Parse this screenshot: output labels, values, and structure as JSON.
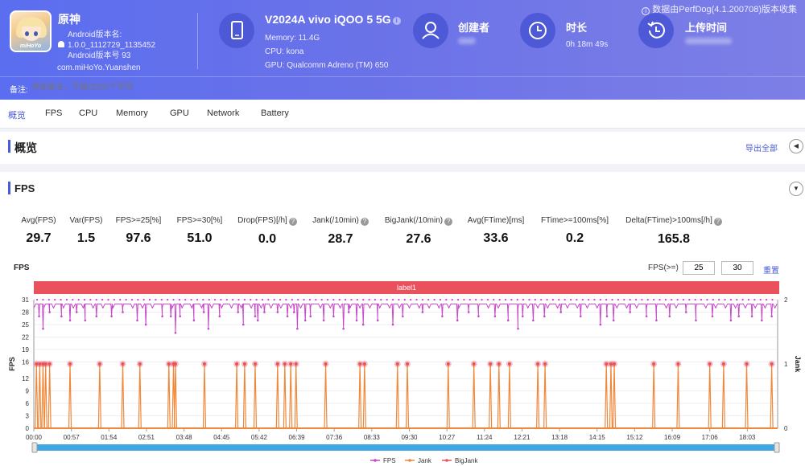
{
  "header": {
    "perfdog_notice": "数据由PerfDog(4.1.200708)版本收集",
    "app": {
      "name": "原神",
      "icon_logo_text": "miHoYo",
      "android_version_label": "Android版本名:",
      "android_version_name": "1.0.0_1112729_1135452",
      "android_version_code": "Android版本号 93",
      "package": "com.miHoYo.Yuanshen"
    },
    "device": {
      "icon": "phone-icon",
      "title": "V2024A vivo iQOO 5 5G",
      "memory": "Memory: 11.4G",
      "cpu": "CPU: kona",
      "gpu": "GPU: Qualcomm Adreno (TM) 650"
    },
    "creator": {
      "icon": "user-icon",
      "label": "创建者"
    },
    "duration": {
      "icon": "clock-icon",
      "label": "时长",
      "value": "0h 18m 49s"
    },
    "upload": {
      "icon": "history-icon",
      "label": "上传时间"
    },
    "note": {
      "label": "备注:",
      "placeholder": "添加备注，不超过200个字符"
    }
  },
  "tabs": [
    {
      "label": "概览",
      "active": true
    },
    {
      "label": "FPS"
    },
    {
      "label": "CPU"
    },
    {
      "label": "Memory"
    },
    {
      "label": "GPU"
    },
    {
      "label": "Network"
    },
    {
      "label": "Battery"
    }
  ],
  "overview": {
    "title": "概览",
    "export_label": "导出全部"
  },
  "fps_section": {
    "title": "FPS",
    "metrics": [
      {
        "label": "Avg(FPS)",
        "value": "29.7"
      },
      {
        "label": "Var(FPS)",
        "value": "1.5"
      },
      {
        "label": "FPS>=25[%]",
        "value": "97.6"
      },
      {
        "label": "FPS>=30[%]",
        "value": "51.0"
      },
      {
        "label": "Drop(FPS)[/h]",
        "value": "0.0",
        "help": true
      },
      {
        "label": "Jank(/10min)",
        "value": "28.7",
        "help": true
      },
      {
        "label": "BigJank(/10min)",
        "value": "27.6",
        "help": true
      },
      {
        "label": "Avg(FTime)[ms]",
        "value": "33.6"
      },
      {
        "label": "FTime>=100ms[%]",
        "value": "0.2"
      },
      {
        "label": "Delta(FTime)>100ms[/h]",
        "value": "165.8",
        "help": true
      }
    ],
    "chart_title": "FPS",
    "threshold_label": "FPS(>=)",
    "threshold_1": "25",
    "threshold_2": "30",
    "reset_label": "重置",
    "label_bar": "label1"
  },
  "chart_data": {
    "type": "line",
    "title": "FPS",
    "ylabel": "FPS",
    "y2label": "Jank",
    "ylim": [
      0,
      31
    ],
    "y2lim": [
      0,
      2
    ],
    "yticks": [
      0,
      3,
      6,
      9,
      12,
      16,
      19,
      22,
      25,
      28,
      31
    ],
    "y2ticks": [
      0,
      1,
      2
    ],
    "xticks": [
      "00:00",
      "00:57",
      "01:54",
      "02:51",
      "03:48",
      "04:45",
      "05:42",
      "06:39",
      "07:36",
      "08:33",
      "09:30",
      "10:27",
      "11:24",
      "12:21",
      "13:18",
      "14:15",
      "15:12",
      "16:09",
      "17:06",
      "18:03"
    ],
    "duration_seconds": 1129,
    "fps_baseline": 30,
    "fps_dips": [
      [
        8,
        27
      ],
      [
        14,
        24
      ],
      [
        24,
        28
      ],
      [
        42,
        27
      ],
      [
        55,
        26
      ],
      [
        65,
        28
      ],
      [
        78,
        26
      ],
      [
        95,
        27
      ],
      [
        118,
        27
      ],
      [
        135,
        28
      ],
      [
        157,
        26
      ],
      [
        170,
        25
      ],
      [
        195,
        27
      ],
      [
        208,
        27
      ],
      [
        215,
        23
      ],
      [
        222,
        27
      ],
      [
        243,
        26
      ],
      [
        258,
        28
      ],
      [
        265,
        24
      ],
      [
        282,
        27
      ],
      [
        310,
        28
      ],
      [
        318,
        25
      ],
      [
        336,
        27
      ],
      [
        340,
        26
      ],
      [
        350,
        28
      ],
      [
        370,
        28
      ],
      [
        385,
        27
      ],
      [
        395,
        28
      ],
      [
        400,
        24
      ],
      [
        412,
        26
      ],
      [
        420,
        27
      ],
      [
        440,
        26
      ],
      [
        455,
        27
      ],
      [
        470,
        24
      ],
      [
        478,
        28
      ],
      [
        490,
        26
      ],
      [
        500,
        25
      ],
      [
        522,
        26
      ],
      [
        545,
        25
      ],
      [
        560,
        27
      ],
      [
        590,
        28
      ],
      [
        620,
        27
      ],
      [
        643,
        26
      ],
      [
        660,
        28
      ],
      [
        675,
        27
      ],
      [
        700,
        27
      ],
      [
        720,
        26
      ],
      [
        735,
        24
      ],
      [
        742,
        27
      ],
      [
        758,
        26
      ],
      [
        775,
        27
      ],
      [
        800,
        28
      ],
      [
        830,
        27
      ],
      [
        860,
        25
      ],
      [
        870,
        27
      ],
      [
        880,
        26
      ],
      [
        905,
        28
      ],
      [
        930,
        27
      ],
      [
        945,
        26
      ],
      [
        965,
        27
      ],
      [
        990,
        28
      ],
      [
        1005,
        26
      ],
      [
        1030,
        27
      ],
      [
        1058,
        26
      ],
      [
        1070,
        27
      ],
      [
        1090,
        27
      ],
      [
        1105,
        26
      ],
      [
        1120,
        27
      ]
    ],
    "jank_times": [
      4,
      9,
      14,
      18,
      24,
      55,
      100,
      135,
      161,
      205,
      212,
      215,
      259,
      308,
      320,
      336,
      370,
      381,
      390,
      398,
      443,
      495,
      502,
      552,
      567,
      629,
      668,
      693,
      706,
      722,
      765,
      776,
      869,
      876,
      881,
      941,
      978,
      1026,
      1047,
      1082,
      1120
    ],
    "series": [
      {
        "name": "FPS",
        "color": "#c647c8"
      },
      {
        "name": "Jank",
        "color": "#f0883a"
      },
      {
        "name": "BigJank",
        "color": "#e9525d"
      }
    ]
  }
}
